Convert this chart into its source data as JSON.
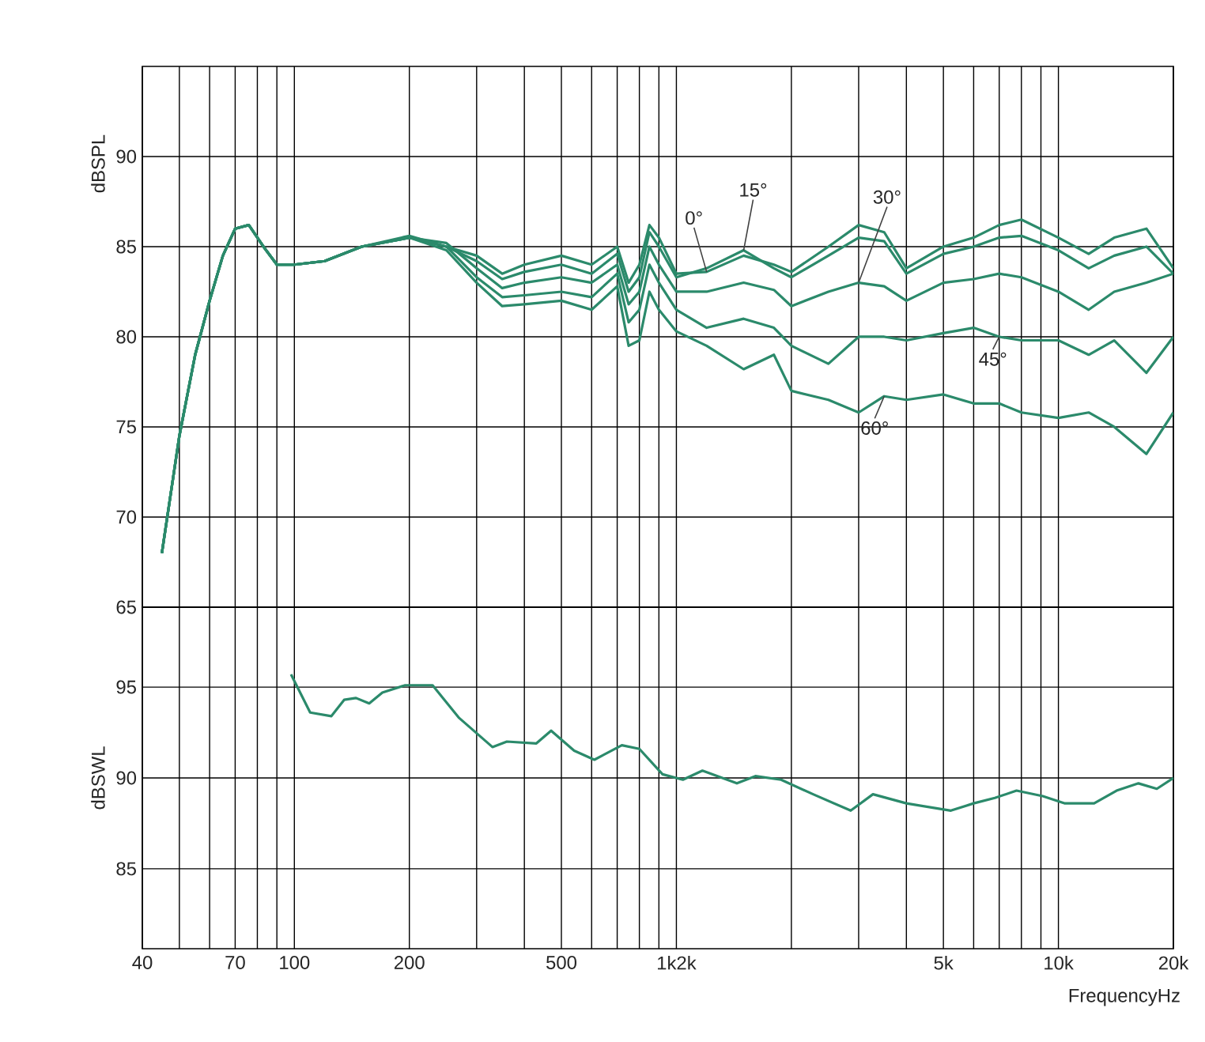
{
  "chart_data": [
    {
      "type": "line",
      "ylabel": "dBSPL",
      "log": "x",
      "grid": true,
      "tick_labels": "y",
      "line_style": "solid",
      "xlim": [
        40,
        20000
      ],
      "ylim": [
        65,
        95
      ],
      "xticks": [
        {
          "value": 40,
          "label": null
        },
        {
          "value": 50,
          "label": null
        },
        {
          "value": 60,
          "label": null
        },
        {
          "value": 70,
          "label": null
        },
        {
          "value": 80,
          "label": null
        },
        {
          "value": 90,
          "label": null
        },
        {
          "value": 100,
          "label": null
        },
        {
          "value": 200,
          "label": null
        },
        {
          "value": 300,
          "label": null
        },
        {
          "value": 400,
          "label": null
        },
        {
          "value": 500,
          "label": null
        },
        {
          "value": 600,
          "label": null
        },
        {
          "value": 700,
          "label": null
        },
        {
          "value": 800,
          "label": null
        },
        {
          "value": 900,
          "label": null
        },
        {
          "value": 1000,
          "label": null
        },
        {
          "value": 2000,
          "label": null
        },
        {
          "value": 3000,
          "label": null
        },
        {
          "value": 4000,
          "label": null
        },
        {
          "value": 5000,
          "label": null
        },
        {
          "value": 6000,
          "label": null
        },
        {
          "value": 7000,
          "label": null
        },
        {
          "value": 8000,
          "label": null
        },
        {
          "value": 9000,
          "label": null
        },
        {
          "value": 10000,
          "label": null
        },
        {
          "value": 20000,
          "label": null
        }
      ],
      "yticks": [
        65,
        70,
        75,
        80,
        85,
        90
      ],
      "x": [
        45,
        50,
        55,
        60,
        65,
        70,
        76,
        83,
        90,
        100,
        120,
        150,
        200,
        250,
        300,
        350,
        400,
        500,
        600,
        700,
        750,
        800,
        850,
        900,
        1000,
        1200,
        1500,
        1800,
        2000,
        2500,
        3000,
        3500,
        4000,
        5000,
        6000,
        7000,
        8000,
        10000,
        12000,
        14000,
        17000,
        20000
      ],
      "series": [
        {
          "name": "0°",
          "color": "#2b8a6b",
          "values": [
            68,
            74.5,
            79,
            82,
            84.5,
            86,
            86.2,
            85,
            84,
            84,
            84.2,
            85,
            85.6,
            85.0,
            84.5,
            83.5,
            84.0,
            84.5,
            84.0,
            85.0,
            83,
            84,
            86.2,
            85.5,
            83.5,
            83.6,
            84.5,
            84.0,
            83.6,
            85.0,
            86.2,
            85.8,
            83.8,
            85.0,
            85.5,
            86.2,
            86.5,
            85.5,
            84.6,
            85.5,
            86.0,
            83.8
          ]
        },
        {
          "name": "15°",
          "color": "#2b8a6b",
          "values": [
            68,
            74.5,
            79,
            82,
            84.5,
            86,
            86.2,
            85,
            84,
            84,
            84.2,
            85,
            85.5,
            85.0,
            84.2,
            83.2,
            83.6,
            84.0,
            83.5,
            84.6,
            82.5,
            83.3,
            85.8,
            85,
            83.3,
            83.8,
            84.8,
            83.8,
            83.3,
            84.5,
            85.5,
            85.3,
            83.5,
            84.6,
            85,
            85.5,
            85.6,
            84.8,
            83.8,
            84.5,
            85.0,
            83.5
          ]
        },
        {
          "name": "30°",
          "color": "#2b8a6b",
          "values": [
            68,
            74.5,
            79,
            82,
            84.5,
            86,
            86.2,
            85,
            84,
            84,
            84.2,
            85,
            85.5,
            85.2,
            83.8,
            82.7,
            83.0,
            83.3,
            83.0,
            84.0,
            81.8,
            82.5,
            85.0,
            84,
            82.5,
            82.5,
            83.0,
            82.6,
            81.7,
            82.5,
            83.0,
            82.8,
            82.0,
            83.0,
            83.2,
            83.5,
            83.3,
            82.5,
            81.5,
            82.5,
            83.0,
            83.5
          ]
        },
        {
          "name": "45°",
          "color": "#2b8a6b",
          "values": [
            68,
            74.5,
            79,
            82,
            84.5,
            86,
            86.2,
            85,
            84,
            84,
            84.2,
            85,
            85.5,
            85.0,
            83.3,
            82.2,
            82.3,
            82.5,
            82.2,
            83.5,
            80.8,
            81.5,
            84.0,
            83,
            81.5,
            80.5,
            81.0,
            80.5,
            79.5,
            78.5,
            80.0,
            80.0,
            79.8,
            80.2,
            80.5,
            80.0,
            79.8,
            79.8,
            79.0,
            79.8,
            78.0,
            80.0
          ]
        },
        {
          "name": "60°",
          "color": "#2b8a6b",
          "values": [
            68,
            74.5,
            79,
            82,
            84.5,
            86,
            86.2,
            85,
            84,
            84,
            84.2,
            85,
            85.5,
            84.8,
            83.0,
            81.7,
            81.8,
            82.0,
            81.5,
            82.8,
            79.5,
            79.8,
            82.5,
            81.5,
            80.3,
            79.5,
            78.2,
            79.0,
            77.0,
            76.5,
            75.8,
            76.7,
            76.5,
            76.8,
            76.3,
            76.3,
            75.8,
            75.5,
            75.8,
            75.0,
            73.5,
            75.8
          ]
        }
      ]
    },
    {
      "type": "line",
      "xlabel": "FrequencyHz",
      "ylabel": "dBSWL",
      "log": "x",
      "grid": true,
      "line_style": "solid",
      "xlim": [
        40,
        20000
      ],
      "ylim": [
        80.6,
        99.4
      ],
      "xticks": [
        40,
        {
          "value": 50,
          "label": null
        },
        {
          "value": 60,
          "label": null
        },
        70,
        {
          "value": 80,
          "label": null
        },
        {
          "value": 90,
          "label": null
        },
        100,
        200,
        {
          "value": 300,
          "label": null
        },
        {
          "value": 400,
          "label": null
        },
        500,
        {
          "value": 600,
          "label": null
        },
        {
          "value": 700,
          "label": null
        },
        {
          "value": 800,
          "label": null
        },
        {
          "value": 900,
          "label": null
        },
        {
          "value": 1000,
          "label": "1k2k"
        },
        {
          "value": 2000,
          "label": null
        },
        {
          "value": 3000,
          "label": null
        },
        {
          "value": 4000,
          "label": null
        },
        {
          "value": 5000,
          "label": "5k"
        },
        {
          "value": 6000,
          "label": null
        },
        {
          "value": 7000,
          "label": null
        },
        {
          "value": 8000,
          "label": null
        },
        {
          "value": 9000,
          "label": null
        },
        {
          "value": 10000,
          "label": "10k"
        },
        {
          "value": 20000,
          "label": "20k"
        }
      ],
      "yticks": [
        85,
        90,
        95
      ],
      "x": [
        98,
        110,
        125,
        135,
        145,
        157,
        170,
        195,
        230,
        270,
        330,
        360,
        430,
        470,
        540,
        610,
        720,
        800,
        920,
        1040,
        1170,
        1440,
        1610,
        1880,
        2280,
        2860,
        3270,
        4000,
        5230,
        6000,
        6820,
        7770,
        9100,
        10400,
        12400,
        14200,
        16200,
        18100,
        20000
      ],
      "series": [
        {
          "color": "#2b8a6b",
          "values": [
            95.7,
            93.6,
            93.4,
            94.3,
            94.4,
            94.1,
            94.7,
            95.1,
            95.1,
            93.3,
            91.7,
            92.0,
            91.9,
            92.6,
            91.5,
            91.0,
            91.8,
            91.6,
            90.2,
            89.9,
            90.4,
            89.7,
            90.1,
            89.9,
            89.1,
            88.2,
            89.1,
            88.6,
            88.2,
            88.6,
            88.9,
            89.3,
            89.0,
            88.6,
            88.6,
            89.3,
            89.7,
            89.4,
            90.0
          ]
        }
      ]
    }
  ]
}
